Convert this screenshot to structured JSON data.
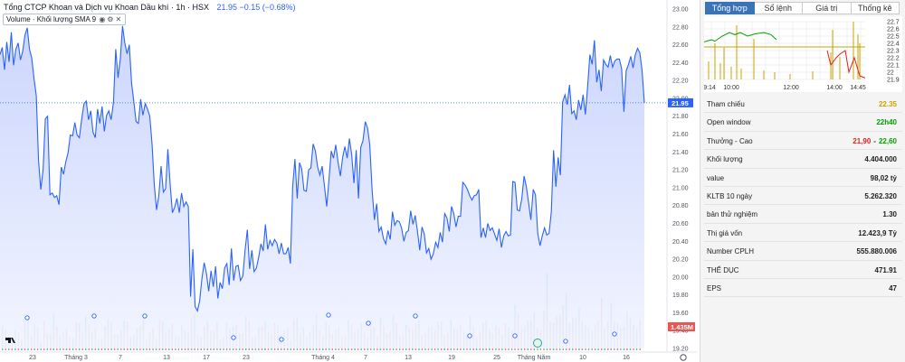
{
  "header": {
    "title": "Tổng CTCP Khoan và Dịch vụ Khoan Dầu khí · 1h · HSX",
    "price": "21.95",
    "change": "−0.15 (−0.68%)"
  },
  "volume_legend": {
    "label": "Volume · Khối lượng",
    "sma": "SMA 9"
  },
  "price_axis": [
    "23.00",
    "22.80",
    "22.60",
    "22.40",
    "22.20",
    "22.00",
    "21.80",
    "21.60",
    "21.40",
    "21.20",
    "21.00",
    "20.80",
    "20.60",
    "20.40",
    "20.20",
    "20.00",
    "19.80",
    "19.60",
    "19.40",
    "19.20"
  ],
  "last_price_label": "21.95",
  "volume_label": "1.435M",
  "time_axis": [
    "23",
    "Tháng 3",
    "7",
    "13",
    "17",
    "23",
    "Tháng 4",
    "7",
    "13",
    "19",
    "25",
    "Tháng Năm",
    "10",
    "16"
  ],
  "colors": {
    "line": "#2962ff",
    "area_top": "#c3cffc",
    "area_bottom": "#f1f4ff",
    "vol_up": "#26a69a",
    "vol_down": "#ef5350",
    "ref": "#c9a400",
    "tab_active": "#3b73b9"
  },
  "chart_data": {
    "type": "line",
    "title": "Tổng CTCP Khoan và Dịch vụ Khoan Dầu khí · 1h · HSX",
    "ylim": [
      19.2,
      23.0
    ],
    "x_ticks": [
      "23",
      "Tháng 3",
      "7",
      "13",
      "17",
      "23",
      "Tháng 4",
      "7",
      "13",
      "19",
      "25",
      "Tháng Năm",
      "10",
      "16"
    ],
    "series": [
      {
        "values": [
          22.49,
          22.57,
          22.32,
          22.63,
          22.41,
          22.74,
          22.37,
          22.55,
          22.62,
          22.43,
          22.53,
          22.71,
          22.79,
          22.55,
          22.45,
          22.22,
          22.03,
          21.3,
          20.98,
          21.2,
          21.77,
          21.8,
          20.92,
          20.94,
          20.89,
          20.91,
          20.81,
          21.23,
          21.15,
          21.29,
          21.39,
          21.59,
          21.58,
          21.73,
          21.59,
          21.56,
          21.77,
          21.94,
          21.97,
          21.76,
          21.86,
          21.62,
          21.56,
          21.88,
          21.72,
          21.91,
          21.63,
          21.81,
          21.86,
          21.76,
          21.96,
          22.55,
          22.23,
          22.44,
          22.81,
          22.62,
          22.5,
          22.6,
          22.17,
          21.96,
          21.74,
          21.72,
          21.99,
          21.81,
          21.94,
          21.88,
          21.8,
          21.49,
          21.03,
          20.75,
          20.91,
          21.24,
          20.95,
          20.99,
          21.43,
          21.04,
          20.72,
          20.78,
          20.88,
          20.72,
          20.94,
          20.79,
          20.84,
          20.79,
          19.78,
          20.31,
          19.67,
          19.62,
          19.73,
          19.98,
          20.16,
          20.04,
          19.84,
          20.07,
          19.89,
          20.12,
          19.76,
          19.94,
          19.87,
          20.1,
          20.15,
          19.91,
          20.32,
          19.96,
          20.12,
          20.13,
          19.96,
          20.01,
          20.3,
          20.53,
          20.09,
          20.3,
          20.06,
          20.1,
          20.22,
          20.37,
          20.29,
          20.59,
          20.31,
          20.41,
          20.35,
          20.42,
          20.38,
          20.26,
          20.38,
          20.26,
          20.26,
          20.33,
          20.15,
          21.01,
          21.32,
          20.88,
          21.28,
          21.21,
          20.97,
          20.96,
          21.2,
          21.22,
          21.49,
          21.41,
          21.23,
          21.14,
          21.24,
          21.02,
          20.79,
          21.09,
          21.41,
          21.33,
          21.48,
          21.29,
          21.13,
          21.34,
          21.46,
          21.33,
          21.55,
          21.37,
          21.05,
          21.42,
          20.88,
          21.45,
          21.53,
          21.74,
          21.67,
          21.48,
          20.97,
          20.64,
          20.82,
          20.51,
          20.56,
          20.43,
          20.37,
          20.52,
          20.42,
          20.73,
          20.58,
          20.63,
          20.62,
          20.55,
          20.4,
          20.5,
          20.52,
          20.74,
          20.59,
          20.69,
          20.51,
          20.3,
          20.56,
          20.48,
          20.27,
          20.32,
          20.2,
          20.26,
          20.39,
          20.33,
          20.5,
          20.39,
          20.71,
          20.66,
          20.51,
          20.79,
          20.71,
          20.56,
          20.68,
          20.68,
          21.06,
          21.03,
          20.98,
          20.91,
          20.86,
          20.91,
          20.92,
          20.98,
          20.44,
          20.55,
          20.44,
          20.6,
          20.52,
          20.55,
          20.48,
          20.41,
          20.54,
          20.33,
          20.46,
          20.51,
          20.46,
          20.47,
          21.07,
          21.06,
          20.75,
          20.74,
          20.88,
          21.13,
          21.01,
          20.83,
          20.64,
          20.98,
          20.92,
          20.49,
          20.35,
          20.46,
          20.55,
          20.47,
          20.49,
          20.73,
          21.42,
          21.01,
          21.34,
          21.14,
          21.96,
          22.04,
          21.93,
          22.15,
          21.83,
          21.86,
          21.76,
          21.98,
          21.87,
          22.04,
          21.82,
          22.13,
          22.49,
          22.38,
          22.65,
          22.18,
          22.32,
          22.08,
          22.43,
          22.38,
          22.35,
          22.48,
          22.35,
          22.42,
          22.44,
          22.44,
          22.33,
          21.85,
          22.31,
          22.38,
          22.47,
          22.34,
          22.49,
          22.56,
          22.51,
          22.31,
          21.95
        ]
      }
    ],
    "volume": {
      "up": [
        0.5,
        0.28,
        0.4,
        0.22,
        0.62,
        0.52,
        0.18,
        0.34,
        0.75,
        0.3,
        0.44,
        0.25,
        0.55,
        0.7,
        0.38,
        0.2,
        0.48,
        0.56,
        0.32,
        0.6,
        0.27,
        0.45,
        0.66,
        0.36,
        0.24,
        0.58,
        0.42,
        0.3,
        0.5,
        0.35,
        0.72,
        0.28,
        0.62,
        0.4,
        0.22,
        0.55,
        0.48,
        0.34,
        0.68,
        0.26,
        0.46,
        0.58,
        0.31,
        0.52,
        0.4,
        0.2,
        0.64,
        0.45,
        0.36,
        0.74,
        0.3,
        0.5,
        0.42,
        0.28,
        0.6,
        0.38,
        0.54,
        0.25,
        0.47,
        0.66,
        0.33,
        0.7,
        0.29,
        0.52,
        0.41,
        0.6,
        0.35,
        0.48,
        0.57,
        0.3,
        0.62,
        0.44,
        0.38,
        0.69,
        0.27,
        0.55,
        0.4,
        0.5,
        0.32,
        0.46,
        0.92,
        0.45,
        0.6,
        0.75,
        0.4,
        1.55,
        0.55,
        0.7,
        1.15,
        0.65,
        0.85,
        0.5,
        0.4,
        0.6,
        0.45,
        0.95,
        0.55,
        0.48,
        0.65,
        0.42
      ],
      "down": [
        0.42,
        0.25,
        0.34,
        0.55,
        0.29,
        0.46,
        0.6,
        0.31,
        0.48,
        0.38,
        0.27,
        0.56,
        0.35,
        0.52,
        0.44,
        0.24,
        0.63,
        0.33,
        0.4,
        0.58,
        0.3,
        0.49,
        0.22,
        0.45,
        0.61,
        0.36,
        0.53,
        0.28,
        0.42,
        0.66,
        0.32,
        0.47,
        0.39,
        0.57,
        0.26,
        0.44,
        0.51,
        0.34,
        0.6,
        0.29,
        0.48,
        0.37,
        0.55,
        0.31,
        0.45,
        0.62,
        0.35,
        0.27,
        0.5,
        0.4,
        0.58,
        0.33,
        0.46,
        0.3,
        0.52,
        0.43,
        0.36,
        0.61,
        0.28,
        0.49,
        0.38,
        0.56,
        0.32,
        0.45,
        0.54,
        0.3,
        0.47,
        0.4,
        0.58,
        0.35,
        0.44,
        0.52,
        0.31,
        0.48,
        0.38,
        0.6,
        0.34,
        0.45,
        0.55,
        0.4,
        0.72,
        0.5,
        0.62,
        0.45,
        0.8,
        0.58,
        0.7,
        0.9,
        0.55,
        0.65,
        0.6,
        0.48,
        0.52,
        1.05,
        0.6,
        0.58,
        0.46,
        0.78,
        0.52,
        0.62
      ]
    }
  },
  "tabs": [
    "Tổng hợp",
    "Sổ lệnh",
    "Giá trị",
    "Thống kê"
  ],
  "mini_chart": {
    "y_ticks": [
      "22.7",
      "22.6",
      "22.5",
      "22.4",
      "22.3",
      "22.2",
      "22.1",
      "22",
      "21.9"
    ],
    "x_ticks": [
      "9:14",
      "10:00",
      "12:00",
      "14:00",
      "14:45"
    ]
  },
  "info": [
    {
      "key": "Tham chiếu",
      "value": "22.35",
      "cls": "yel"
    },
    {
      "key": "Open window",
      "value": "22h40",
      "cls": "grn"
    },
    {
      "key": "Thưởng - Cao",
      "low": "21,90",
      "sep": "-",
      "high": "22,60",
      "cls": "range"
    },
    {
      "key": "Khối lượng",
      "value": "4.404.000",
      "cls": ""
    },
    {
      "key": "value",
      "value": "98,02 tỷ",
      "cls": ""
    },
    {
      "key": "KLTB 10 ngày",
      "value": "5.262.320",
      "cls": ""
    },
    {
      "key": "bản thử nghiệm",
      "value": "1.30",
      "cls": ""
    },
    {
      "key": "Thị giá vốn",
      "value": "12.423,9 Tỷ",
      "cls": ""
    },
    {
      "key": "Number CPLH",
      "value": "555.880.006",
      "cls": ""
    },
    {
      "key": "THỂ DỤC",
      "value": "471.91",
      "cls": ""
    },
    {
      "key": "EPS",
      "value": "47",
      "cls": ""
    }
  ]
}
